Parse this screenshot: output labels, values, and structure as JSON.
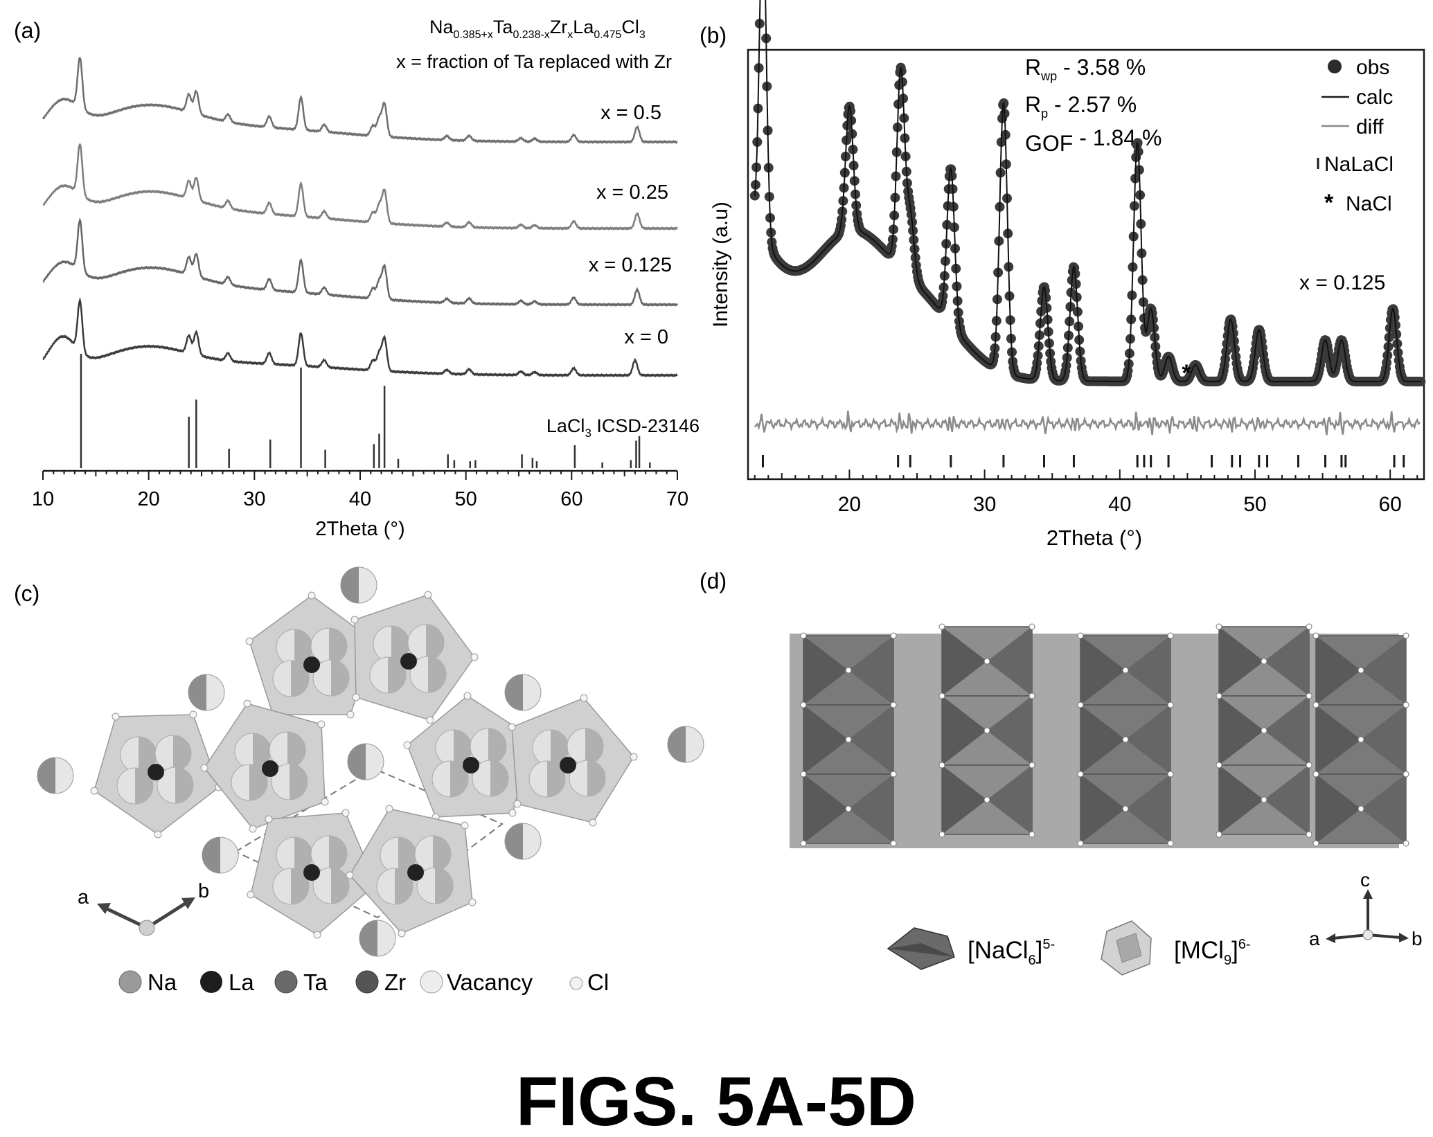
{
  "figure_caption": "FIGS. 5A-5D",
  "colors": {
    "dark": "#2b2b2b",
    "mid": "#555555",
    "light": "#8a8a8a",
    "polyhedron_dark": "#6f6f6f",
    "polyhedron_light": "#b8b8b8",
    "atom": "#bdbdbd"
  },
  "panel_a": {
    "label": "(a)",
    "formula": {
      "na": "Na",
      "na_sub": "0.385+x",
      "ta": "Ta",
      "ta_sub": "0.238-x",
      "zr": "Zr",
      "zr_sub": "x",
      "la": "La",
      "la_sub": "0.475",
      "cl": "Cl",
      "cl_sub": "3"
    },
    "note": "x = fraction of Ta replaced with Zr",
    "series_labels": [
      "x = 0.5",
      "x = 0.25",
      "x = 0.125",
      "x = 0",
      "LaCl3 ICSD-23146"
    ],
    "reference_label": {
      "main": "LaCl",
      "sub": "3",
      "tail": " ICSD-23146"
    },
    "xlabel": "2Theta (°)",
    "ticks": [
      "10",
      "20",
      "30",
      "40",
      "50",
      "60",
      "70"
    ]
  },
  "panel_b": {
    "label": "(b)",
    "ylabel": "Intensity (a.u)",
    "xlabel": "2Theta (°)",
    "ticks": [
      "20",
      "30",
      "40",
      "50",
      "60"
    ],
    "stats": [
      {
        "sym": "R",
        "sub": "wp",
        "val": " - 3.58 %"
      },
      {
        "sym": "R",
        "sub": "p",
        "val": "  - 2.57 %"
      },
      {
        "sym": "GOF",
        "sub": "",
        "val": " - 1.84 %"
      }
    ],
    "legend": [
      "obs",
      "calc",
      "diff",
      "NaLaCl",
      "NaCl"
    ],
    "star": "*",
    "composition": "x = 0.125"
  },
  "panel_c": {
    "label": "(c)",
    "axis_a": "a",
    "axis_b": "b",
    "legend": [
      "Na",
      "La",
      "Ta",
      "Zr",
      "Vacancy",
      "Cl"
    ]
  },
  "panel_d": {
    "label": "(d)",
    "legend": [
      {
        "main": "[NaCl",
        "sub": "6",
        "sup": "5-"
      },
      {
        "main": "[MCl",
        "sub": "9",
        "sup": "6-"
      }
    ],
    "axes": [
      "c",
      "a",
      "b"
    ]
  },
  "chart_data": [
    {
      "type": "line",
      "title": "",
      "xlabel": "2Theta (°)",
      "ylabel": "",
      "xlim": [
        10,
        70
      ],
      "series": [
        {
          "name": "x = 0.5",
          "peaks": [
            13.5,
            23.8,
            24.5,
            27.5,
            31.4,
            34.4,
            36.6,
            41.2,
            41.8,
            42.3,
            48.2,
            50.3,
            55.2,
            56.5,
            60.2,
            66.2
          ]
        },
        {
          "name": "x = 0.25",
          "peaks": [
            13.5,
            23.8,
            24.5,
            27.5,
            31.4,
            34.4,
            36.6,
            41.2,
            41.8,
            42.3,
            48.2,
            50.3,
            55.2,
            56.5,
            60.2,
            66.2
          ]
        },
        {
          "name": "x = 0.125",
          "peaks": [
            13.5,
            23.8,
            24.5,
            27.5,
            31.4,
            34.4,
            36.6,
            41.2,
            41.8,
            42.3,
            48.2,
            50.3,
            55.2,
            56.5,
            60.2,
            66.2
          ]
        },
        {
          "name": "x = 0",
          "peaks": [
            13.5,
            23.8,
            24.5,
            27.5,
            31.4,
            34.4,
            36.6,
            41.2,
            41.8,
            42.3,
            48.2,
            50.3,
            55.2,
            56.5,
            60.2,
            66.0
          ]
        }
      ],
      "reference": {
        "name": "LaCl3 ICSD-23146",
        "x": [
          13.6,
          23.8,
          24.5,
          27.6,
          31.5,
          34.4,
          36.7,
          41.3,
          41.8,
          42.3,
          43.6,
          48.3,
          48.9,
          50.4,
          50.9,
          55.3,
          56.3,
          56.7,
          60.3,
          62.9,
          65.6,
          66.1,
          66.4,
          67.4
        ],
        "y": [
          1.0,
          0.45,
          0.6,
          0.17,
          0.25,
          0.88,
          0.16,
          0.21,
          0.3,
          0.72,
          0.08,
          0.12,
          0.07,
          0.06,
          0.07,
          0.12,
          0.09,
          0.06,
          0.2,
          0.05,
          0.07,
          0.24,
          0.28,
          0.05
        ]
      }
    },
    {
      "type": "scatter",
      "title": "",
      "xlabel": "2Theta (°)",
      "ylabel": "Intensity (a.u)",
      "xlim": [
        12.5,
        62.5
      ],
      "series": [
        {
          "name": "obs",
          "peaks": [
            13.6,
            20.0,
            23.8,
            24.5,
            27.5,
            31.4,
            34.4,
            36.6,
            41.3,
            42.3,
            43.6,
            45.6,
            48.2,
            50.3,
            55.2,
            56.4,
            60.2
          ]
        },
        {
          "name": "calc"
        },
        {
          "name": "diff"
        }
      ],
      "tick_marks_NaLaCl": [
        13.6,
        23.6,
        24.5,
        27.5,
        31.4,
        34.4,
        36.6,
        41.3,
        41.8,
        42.3,
        43.6,
        46.8,
        48.3,
        48.9,
        50.3,
        50.9,
        53.2,
        55.2,
        56.4,
        56.7,
        60.3,
        61.0
      ],
      "NaCl_peak": 45.6
    }
  ]
}
